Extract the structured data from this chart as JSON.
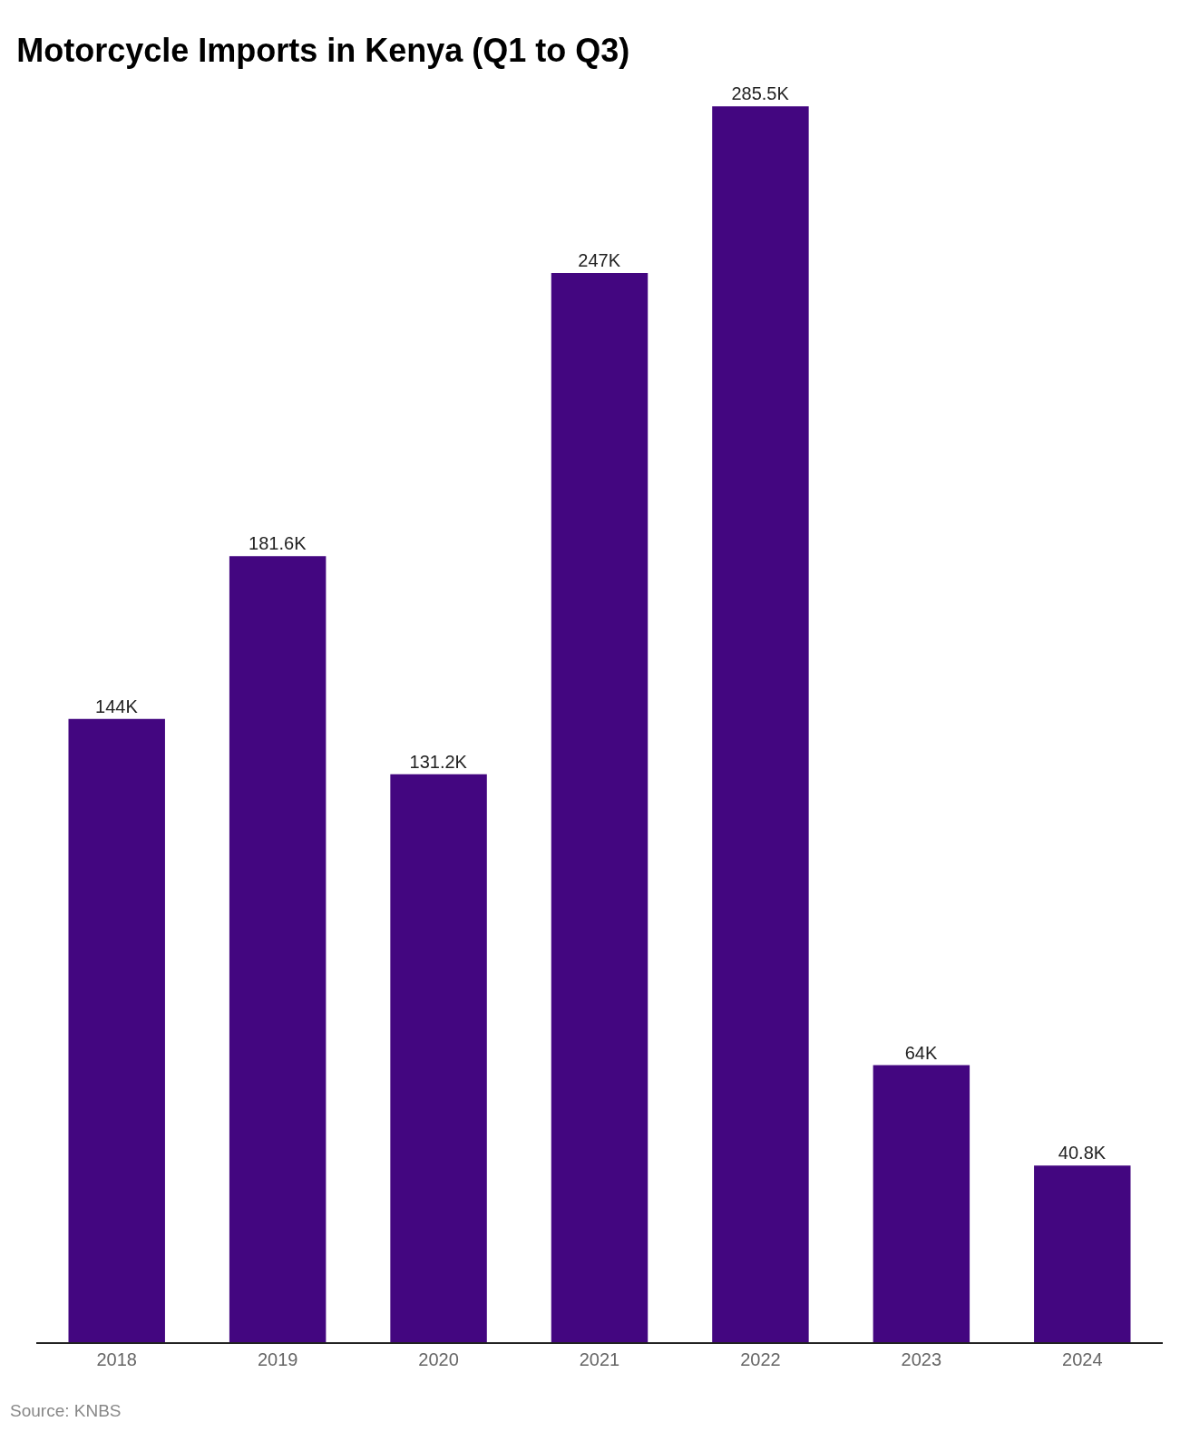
{
  "chart_data": {
    "type": "bar",
    "title": "Motorcycle Imports in Kenya (Q1 to Q3)",
    "categories": [
      "2018",
      "2019",
      "2020",
      "2021",
      "2022",
      "2023",
      "2024"
    ],
    "values": [
      144,
      181.6,
      131.2,
      247,
      285.5,
      64,
      40.8
    ],
    "value_labels": [
      "144K",
      "181.6K",
      "131.2K",
      "247K",
      "285.5K",
      "64K",
      "40.8K"
    ],
    "color": "#430680",
    "annotations": [
      "Source: KNBS"
    ]
  }
}
